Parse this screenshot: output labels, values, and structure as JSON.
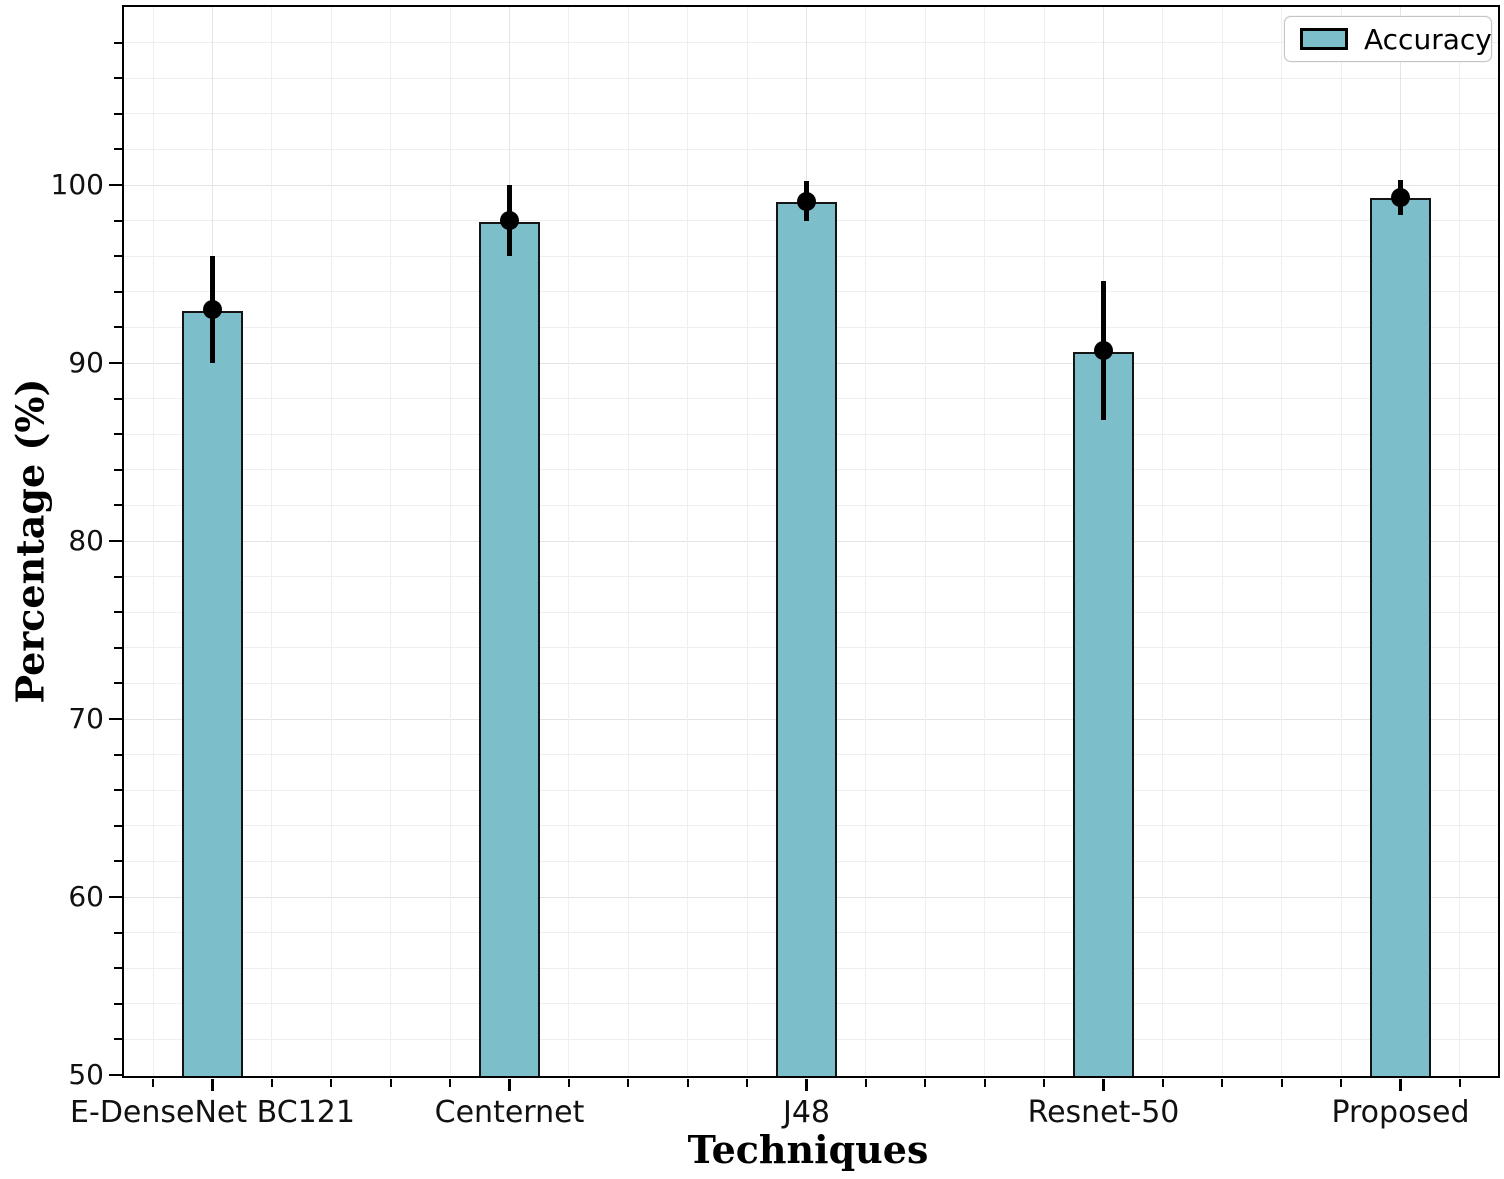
{
  "chart_data": {
    "type": "bar",
    "title": "",
    "xlabel": "Techniques",
    "ylabel": "Percentage (%)",
    "categories": [
      "E-DenseNet BC121",
      "Centernet",
      "J48",
      "Resnet-50",
      "Proposed"
    ],
    "series": [
      {
        "name": "Accuracy",
        "values": [
          93.0,
          98.0,
          99.1,
          90.7,
          99.3
        ],
        "errors": [
          3.0,
          2.0,
          1.1,
          3.9,
          1.0
        ]
      }
    ],
    "ylim": [
      50,
      110
    ],
    "yticks": [
      50,
      60,
      70,
      80,
      90,
      100
    ],
    "y_minor_step": 2,
    "grid": "major+minor, light gray, on",
    "legend_position": "upper right",
    "bar_color": "#7dbecb",
    "bar_edge_color": "#141414",
    "error_color": "#000000"
  },
  "legend": {
    "label": "Accuracy"
  },
  "axes": {
    "xlabel": "Techniques",
    "ylabel": "Percentage (%)"
  }
}
